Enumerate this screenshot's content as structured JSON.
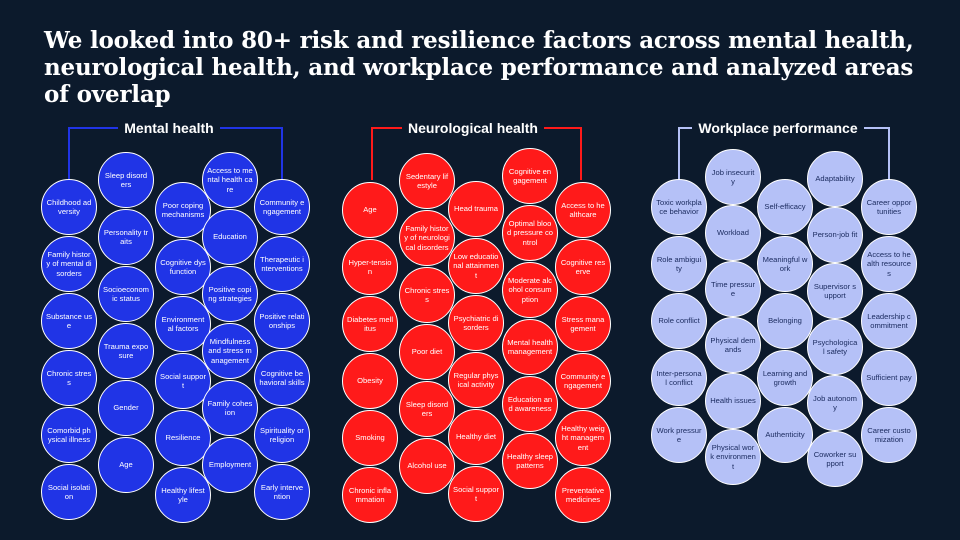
{
  "headline": "We looked into 80+ risk and resilience factors across mental health, neurological health, and workplace performance and analyzed areas of overlap",
  "groups": [
    {
      "key": "mental",
      "title": "Mental health",
      "color": "#2034e6",
      "columns": [
        [
          "Childhood adversity",
          "Family history of mental disorders",
          "Substance use",
          "Chronic stress",
          "Comorbid physical illness",
          "Social isolation"
        ],
        [
          "Sleep disorders",
          "Personality traits",
          "Socioeconomic status",
          "Trauma exposure",
          "Gender",
          "Age"
        ],
        [
          "Poor coping mechanisms",
          "Cognitive dysfunction",
          "Environmental factors",
          "Social support",
          "Resilience",
          "Healthy lifestyle"
        ],
        [
          "Access to mental health care",
          "Education",
          "Positive coping strategies",
          "Mindfulness and stress management",
          "Family cohesion",
          "Employment"
        ],
        [
          "Community engagement",
          "Therapeutic interventions",
          "Positive relationships",
          "Cognitive behavioral skills",
          "Spirituality or religion",
          "Early intervention"
        ]
      ]
    },
    {
      "key": "neuro",
      "title": "Neurological health",
      "color": "#ff1a1a",
      "columns": [
        [
          "Age",
          "Hyper-tension",
          "Diabetes mellitus",
          "Obesity",
          "Smoking",
          "Chronic inflammation"
        ],
        [
          "Sedentary lifestyle",
          "Family history of neurological disorders",
          "Chronic stress",
          "Poor diet",
          "Sleep disorders",
          "Alcohol use"
        ],
        [
          "Head trauma",
          "Low educational attainment",
          "Psychiatric disorders",
          "Regular physical activity",
          "Healthy diet",
          "Social support"
        ],
        [
          "Cognitive engagement",
          "Optimal blood pressure control",
          "Moderate alcohol consumption",
          "Mental health management",
          "Education and awareness",
          "Healthy sleep patterns"
        ],
        [
          "Access to healthcare",
          "Cognitive reserve",
          "Stress management",
          "Community engagement",
          "Healthy weight management",
          "Preventative medicines"
        ]
      ]
    },
    {
      "key": "work",
      "title": "Workplace performance",
      "color": "#b5c1f7",
      "columns": [
        [
          "Toxic workplace behavior",
          "Role ambiguity",
          "Role conflict",
          "Inter-personal conflict",
          "Work pressure"
        ],
        [
          "Job insecurity",
          "Workload",
          "Time pressure",
          "Physical demands",
          "Health issues",
          "Physical work environment"
        ],
        [
          "Self-efficacy",
          "Meaningful work",
          "Belonging",
          "Learning and growth",
          "Authenticity"
        ],
        [
          "Adaptability",
          "Person-job fit",
          "Supervisor support",
          "Psychological safety",
          "Job autonomy",
          "Coworker support"
        ],
        [
          "Career opportunities",
          "Access to health resources",
          "Leadership commitment",
          "Sufficient pay",
          "Career customization"
        ]
      ]
    }
  ]
}
